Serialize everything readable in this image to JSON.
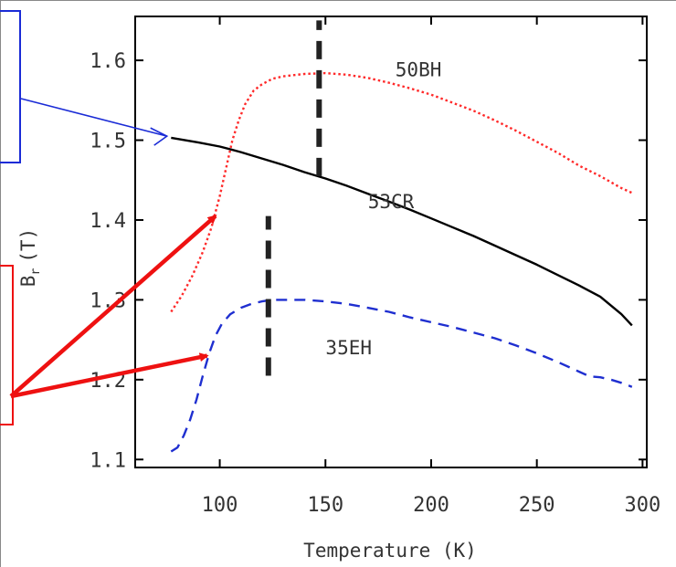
{
  "chart_data": {
    "type": "line",
    "xlabel": "Temperature (K)",
    "ylabel": "Br (T)",
    "ylabel_main": "B",
    "ylabel_sub": "r",
    "ylabel_unit": "(T)",
    "xlim": [
      60,
      302
    ],
    "ylim": [
      1.09,
      1.655
    ],
    "x_ticks": [
      100,
      150,
      200,
      250,
      300
    ],
    "x_tick_labels": [
      "100",
      "150",
      "200",
      "250",
      "300"
    ],
    "y_ticks": [
      1.1,
      1.2,
      1.3,
      1.4,
      1.5,
      1.6
    ],
    "y_tick_labels": [
      "1.1",
      "1.2",
      "1.3",
      "1.4",
      "1.5",
      "1.6"
    ],
    "grid": false,
    "series": [
      {
        "name": "50BH",
        "color": "#ff2a2a",
        "style": "dotted",
        "points": [
          [
            77,
            1.285
          ],
          [
            82,
            1.305
          ],
          [
            87,
            1.33
          ],
          [
            92,
            1.36
          ],
          [
            96,
            1.39
          ],
          [
            100,
            1.43
          ],
          [
            103,
            1.465
          ],
          [
            106,
            1.5
          ],
          [
            109,
            1.525
          ],
          [
            112,
            1.545
          ],
          [
            116,
            1.562
          ],
          [
            120,
            1.57
          ],
          [
            125,
            1.577
          ],
          [
            130,
            1.58
          ],
          [
            140,
            1.583
          ],
          [
            150,
            1.584
          ],
          [
            160,
            1.582
          ],
          [
            170,
            1.578
          ],
          [
            180,
            1.572
          ],
          [
            190,
            1.565
          ],
          [
            200,
            1.557
          ],
          [
            210,
            1.547
          ],
          [
            220,
            1.537
          ],
          [
            230,
            1.525
          ],
          [
            240,
            1.512
          ],
          [
            250,
            1.498
          ],
          [
            260,
            1.484
          ],
          [
            270,
            1.468
          ],
          [
            280,
            1.455
          ],
          [
            290,
            1.44
          ],
          [
            295,
            1.434
          ]
        ]
      },
      {
        "name": "53CR",
        "color": "#000000",
        "style": "solid",
        "points": [
          [
            77,
            1.503
          ],
          [
            90,
            1.497
          ],
          [
            100,
            1.492
          ],
          [
            110,
            1.485
          ],
          [
            120,
            1.477
          ],
          [
            130,
            1.469
          ],
          [
            140,
            1.46
          ],
          [
            150,
            1.452
          ],
          [
            160,
            1.443
          ],
          [
            170,
            1.433
          ],
          [
            180,
            1.423
          ],
          [
            190,
            1.413
          ],
          [
            200,
            1.402
          ],
          [
            210,
            1.391
          ],
          [
            220,
            1.38
          ],
          [
            230,
            1.368
          ],
          [
            240,
            1.356
          ],
          [
            250,
            1.344
          ],
          [
            260,
            1.331
          ],
          [
            270,
            1.318
          ],
          [
            280,
            1.304
          ],
          [
            290,
            1.282
          ],
          [
            295,
            1.268
          ]
        ]
      },
      {
        "name": "35EH",
        "color": "#1f2fd0",
        "style": "dashed",
        "points": [
          [
            77,
            1.11
          ],
          [
            80,
            1.115
          ],
          [
            83,
            1.13
          ],
          [
            86,
            1.15
          ],
          [
            89,
            1.175
          ],
          [
            92,
            1.205
          ],
          [
            95,
            1.233
          ],
          [
            98,
            1.255
          ],
          [
            101,
            1.27
          ],
          [
            105,
            1.282
          ],
          [
            110,
            1.29
          ],
          [
            115,
            1.295
          ],
          [
            120,
            1.298
          ],
          [
            125,
            1.3
          ],
          [
            130,
            1.3
          ],
          [
            140,
            1.3
          ],
          [
            150,
            1.298
          ],
          [
            160,
            1.295
          ],
          [
            170,
            1.29
          ],
          [
            180,
            1.285
          ],
          [
            190,
            1.278
          ],
          [
            200,
            1.272
          ],
          [
            210,
            1.266
          ],
          [
            220,
            1.259
          ],
          [
            230,
            1.252
          ],
          [
            240,
            1.243
          ],
          [
            250,
            1.233
          ],
          [
            260,
            1.222
          ],
          [
            270,
            1.21
          ],
          [
            275,
            1.204
          ],
          [
            280,
            1.203
          ],
          [
            285,
            1.2
          ],
          [
            290,
            1.196
          ],
          [
            295,
            1.191
          ]
        ]
      }
    ],
    "series_labels": [
      {
        "text": "50BH",
        "x": 194,
        "y": 1.58
      },
      {
        "text": "53CR",
        "x": 181,
        "y": 1.415
      },
      {
        "text": "35EH",
        "x": 161,
        "y": 1.232
      }
    ],
    "vertical_markers": [
      {
        "x": 147,
        "y_from": 1.455,
        "y_to": 1.65,
        "color": "#222222"
      },
      {
        "x": 123,
        "y_from": 1.205,
        "y_to": 1.405,
        "color": "#222222"
      }
    ],
    "annotations": [
      {
        "type": "arrow",
        "color": "#1a2bd6",
        "to": [
          75,
          1.505
        ]
      },
      {
        "type": "arrow",
        "color": "#ee1111",
        "to": [
          98,
          1.405
        ]
      },
      {
        "type": "arrow",
        "color": "#ee1111",
        "to": [
          94,
          1.23
        ]
      }
    ]
  }
}
